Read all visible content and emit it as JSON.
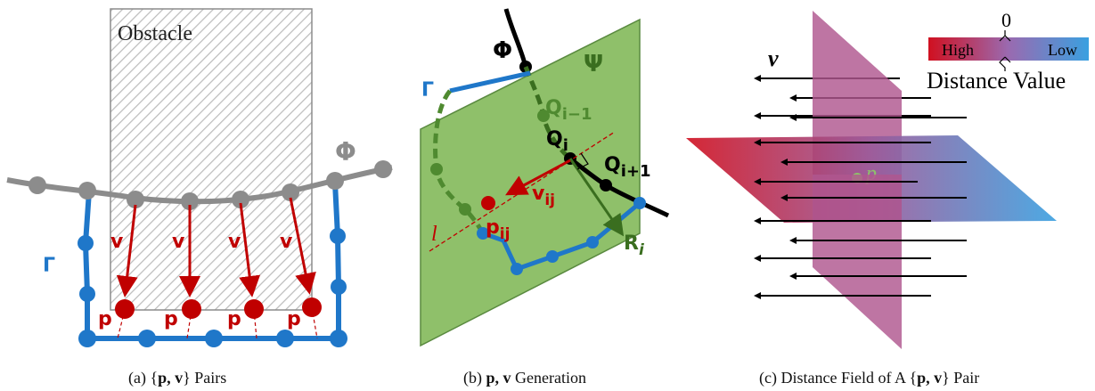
{
  "panel_a": {
    "obstacle_label": "Obstacle",
    "phi": "Φ",
    "gamma": "Γ",
    "v": "v",
    "p": "p",
    "caption_prefix": "(a) {",
    "caption_bold": "p, v",
    "caption_suffix": "} Pairs"
  },
  "panel_b": {
    "phi": "Φ",
    "psi": "Ψ",
    "gamma": "Γ",
    "q_prev_main": "Q",
    "q_prev_sub": "i−1",
    "q_i_main": "Q",
    "q_i_sub": "i",
    "q_next_main": "Q",
    "q_next_sub": "i+1",
    "v_main": "v",
    "v_sub": "ij",
    "p_main": "p",
    "p_sub": "ij",
    "l": "l",
    "r_main": "R",
    "r_sub": "i",
    "caption_prefix": "(b) ",
    "caption_bold": "p, v",
    "caption_suffix": " Generation"
  },
  "panel_c": {
    "v": "v",
    "p": "p",
    "legend_high": "High",
    "legend_low": "Low",
    "legend_zero": "0",
    "legend_title": "Distance Value",
    "caption_prefix": "(c) Distance Field of A {",
    "caption_bold": "p, v",
    "caption_suffix": "} Pair"
  },
  "colors": {
    "gray": "#8c8c8c",
    "blue": "#1f77c9",
    "red": "#c00000",
    "green_plane": "#8fc06a",
    "dark_green": "#3a6e1f",
    "magenta": "#b0578f",
    "high": "#d01020",
    "low": "#3aa0e0"
  }
}
